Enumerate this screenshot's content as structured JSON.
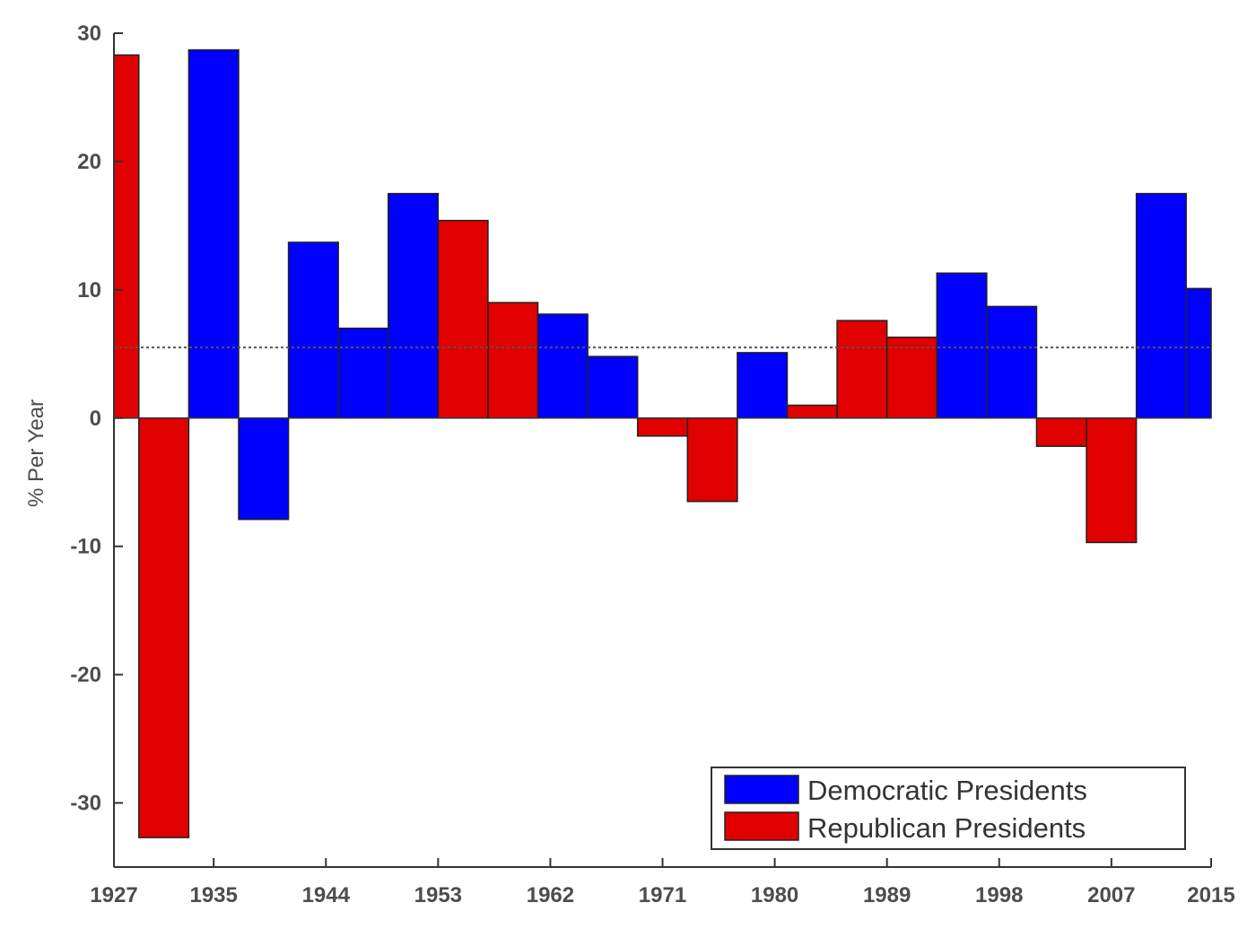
{
  "chart_data": {
    "type": "bar",
    "ylabel": "% Per Year",
    "xlabel": "",
    "ylim": [
      -35,
      30
    ],
    "xlim": [
      1927,
      2015
    ],
    "yticks": [
      30,
      20,
      10,
      0,
      -10,
      -20,
      -30
    ],
    "xticks": [
      "1927",
      "1935",
      "1944",
      "1953",
      "1962",
      "1971",
      "1980",
      "1989",
      "1998",
      "2007",
      "2015"
    ],
    "reference_line": 5.5,
    "grid": false,
    "legend_position": "bottom-right",
    "colors": {
      "Democratic Presidents": "#0000ff",
      "Republican Presidents": "#e00000"
    },
    "legend": [
      "Democratic Presidents",
      "Republican Presidents"
    ],
    "bars": [
      {
        "start": 1927,
        "end": 1929,
        "value": 28.3,
        "party": "Republican Presidents"
      },
      {
        "start": 1929,
        "end": 1933,
        "value": -32.7,
        "party": "Republican Presidents"
      },
      {
        "start": 1933,
        "end": 1937,
        "value": 28.7,
        "party": "Democratic Presidents"
      },
      {
        "start": 1937,
        "end": 1941,
        "value": -7.9,
        "party": "Democratic Presidents"
      },
      {
        "start": 1941,
        "end": 1945,
        "value": 13.7,
        "party": "Democratic Presidents"
      },
      {
        "start": 1945,
        "end": 1949,
        "value": 7.0,
        "party": "Democratic Presidents"
      },
      {
        "start": 1949,
        "end": 1953,
        "value": 17.5,
        "party": "Democratic Presidents"
      },
      {
        "start": 1953,
        "end": 1957,
        "value": 15.4,
        "party": "Republican Presidents"
      },
      {
        "start": 1957,
        "end": 1961,
        "value": 9.0,
        "party": "Republican Presidents"
      },
      {
        "start": 1961,
        "end": 1965,
        "value": 8.1,
        "party": "Democratic Presidents"
      },
      {
        "start": 1965,
        "end": 1969,
        "value": 4.8,
        "party": "Democratic Presidents"
      },
      {
        "start": 1969,
        "end": 1973,
        "value": -1.4,
        "party": "Republican Presidents"
      },
      {
        "start": 1973,
        "end": 1977,
        "value": -6.5,
        "party": "Republican Presidents"
      },
      {
        "start": 1977,
        "end": 1981,
        "value": 5.1,
        "party": "Democratic Presidents"
      },
      {
        "start": 1981,
        "end": 1985,
        "value": 1.0,
        "party": "Republican Presidents"
      },
      {
        "start": 1985,
        "end": 1989,
        "value": 7.6,
        "party": "Republican Presidents"
      },
      {
        "start": 1989,
        "end": 1993,
        "value": 6.3,
        "party": "Republican Presidents"
      },
      {
        "start": 1993,
        "end": 1997,
        "value": 11.3,
        "party": "Democratic Presidents"
      },
      {
        "start": 1997,
        "end": 2001,
        "value": 8.7,
        "party": "Democratic Presidents"
      },
      {
        "start": 2001,
        "end": 2005,
        "value": -2.2,
        "party": "Republican Presidents"
      },
      {
        "start": 2005,
        "end": 2009,
        "value": -9.7,
        "party": "Republican Presidents"
      },
      {
        "start": 2009,
        "end": 2013,
        "value": 17.5,
        "party": "Democratic Presidents"
      },
      {
        "start": 2013,
        "end": 2015,
        "value": 10.1,
        "party": "Democratic Presidents"
      }
    ]
  }
}
